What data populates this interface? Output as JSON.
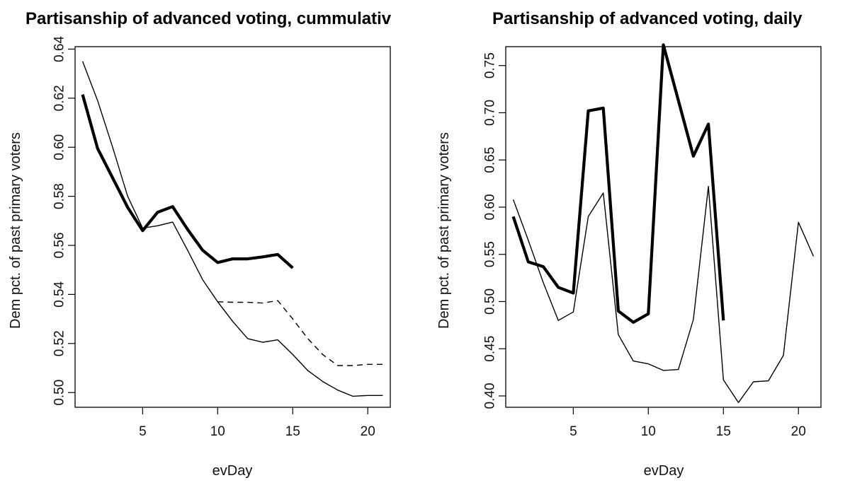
{
  "chart_data": [
    {
      "type": "line",
      "title": "Partisanship of advanced voting, cummulativ",
      "xlabel": "evDay",
      "ylabel": "Dem pct. of past primary voters",
      "xlim": [
        0.5,
        21.5
      ],
      "ylim": [
        0.494,
        0.641
      ],
      "xticks": [
        5,
        10,
        15,
        20
      ],
      "yticks": [
        0.5,
        0.52,
        0.54,
        0.56,
        0.58,
        0.6,
        0.62,
        0.64
      ],
      "ytick_labels": [
        "0.50",
        "0.52",
        "0.54",
        "0.56",
        "0.58",
        "0.60",
        "0.62",
        "0.64"
      ],
      "series": [
        {
          "style": "thin-solid",
          "x": [
            1,
            2,
            3,
            4,
            5,
            6,
            7,
            8,
            9,
            10,
            11,
            12,
            13,
            14,
            15,
            16,
            17,
            18,
            19,
            20,
            21
          ],
          "y": [
            0.635,
            0.619,
            0.6,
            0.58,
            0.567,
            0.568,
            0.5695,
            0.558,
            0.546,
            0.537,
            0.529,
            0.522,
            0.5205,
            0.5215,
            0.5155,
            0.509,
            0.5045,
            0.501,
            0.4985,
            0.4988,
            0.4988
          ]
        },
        {
          "style": "dashed",
          "x": [
            10,
            11,
            12,
            13,
            14,
            15,
            16,
            17,
            18,
            19,
            20,
            21
          ],
          "y": [
            0.537,
            0.5368,
            0.5368,
            0.5365,
            0.5375,
            0.53,
            0.522,
            0.5155,
            0.511,
            0.511,
            0.5115,
            0.5115
          ]
        },
        {
          "style": "thick-solid",
          "x": [
            1,
            2,
            3,
            4,
            5,
            6,
            7,
            8,
            9,
            10,
            11,
            12,
            13,
            14,
            15
          ],
          "y": [
            0.6215,
            0.5995,
            0.5875,
            0.5755,
            0.566,
            0.5735,
            0.5758,
            0.5665,
            0.558,
            0.553,
            0.5545,
            0.5545,
            0.5553,
            0.5563,
            0.5508
          ]
        }
      ]
    },
    {
      "type": "line",
      "title": "Partisanship of advanced voting, daily",
      "xlabel": "evDay",
      "ylabel": "Dem pct. of past primary voters",
      "xlim": [
        0.5,
        21.5
      ],
      "ylim": [
        0.388,
        0.77
      ],
      "xticks": [
        5,
        10,
        15,
        20
      ],
      "yticks": [
        0.4,
        0.45,
        0.5,
        0.55,
        0.6,
        0.65,
        0.7,
        0.75
      ],
      "ytick_labels": [
        "0.40",
        "0.45",
        "0.50",
        "0.55",
        "0.60",
        "0.65",
        "0.70",
        "0.75"
      ],
      "series": [
        {
          "style": "thin-solid",
          "x": [
            1,
            2,
            3,
            4,
            5,
            6,
            7,
            8,
            9,
            10,
            11,
            12,
            13,
            14,
            15,
            16,
            17,
            18,
            19,
            20,
            21
          ],
          "y": [
            0.608,
            0.565,
            0.52,
            0.48,
            0.489,
            0.59,
            0.615,
            0.465,
            0.437,
            0.434,
            0.427,
            0.428,
            0.481,
            0.622,
            0.417,
            0.393,
            0.415,
            0.416,
            0.443,
            0.584,
            0.548
          ]
        },
        {
          "style": "thick-solid",
          "x": [
            1,
            2,
            3,
            4,
            5,
            6,
            7,
            8,
            9,
            10,
            11,
            12,
            13,
            14,
            15
          ],
          "y": [
            0.59,
            0.542,
            0.537,
            0.515,
            0.509,
            0.702,
            0.705,
            0.49,
            0.478,
            0.487,
            0.772,
            0.713,
            0.654,
            0.688,
            0.48
          ]
        }
      ]
    }
  ]
}
